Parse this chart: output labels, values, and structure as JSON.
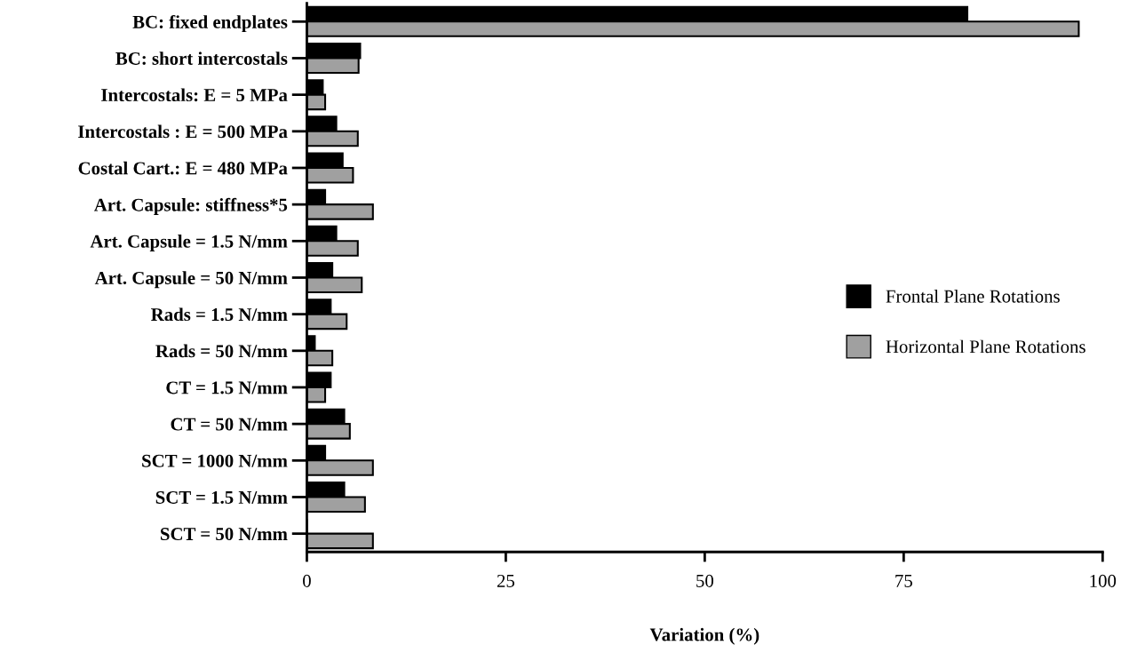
{
  "chart_data": {
    "type": "bar",
    "orientation": "horizontal",
    "xlabel": "Variation (%)",
    "categories": [
      "BC: fixed endplates",
      "BC: short intercostals",
      "Intercostals: E = 5 MPa",
      "Intercostals : E = 500 MPa",
      "Costal Cart.: E = 480 MPa",
      "Art. Capsule: stiffness*5",
      "Art. Capsule = 1.5 N/mm",
      "Art. Capsule = 50 N/mm",
      "Rads = 1.5 N/mm",
      "Rads = 50 N/mm",
      "CT = 1.5 N/mm",
      "CT = 50 N/mm",
      "SCT = 1000 N/mm",
      "SCT = 1.5 N/mm",
      "SCT = 50 N/mm"
    ],
    "series": [
      {
        "name": "Frontal Plane Rotations",
        "color": "#000000",
        "values": [
          83,
          6.7,
          2.0,
          3.7,
          4.5,
          2.3,
          3.7,
          3.2,
          3.0,
          1.0,
          3.0,
          4.7,
          2.3,
          4.7,
          0
        ]
      },
      {
        "name": "Horizontal Plane Rotations",
        "color": "#a0a0a0",
        "values": [
          97,
          6.5,
          2.3,
          6.4,
          5.8,
          8.3,
          6.4,
          6.9,
          5.0,
          3.2,
          2.3,
          5.4,
          8.3,
          7.3,
          8.3
        ]
      }
    ],
    "xlim": [
      0,
      100
    ],
    "xticks": [
      0,
      25,
      50,
      75,
      100
    ],
    "grid": false,
    "legend": "right"
  }
}
